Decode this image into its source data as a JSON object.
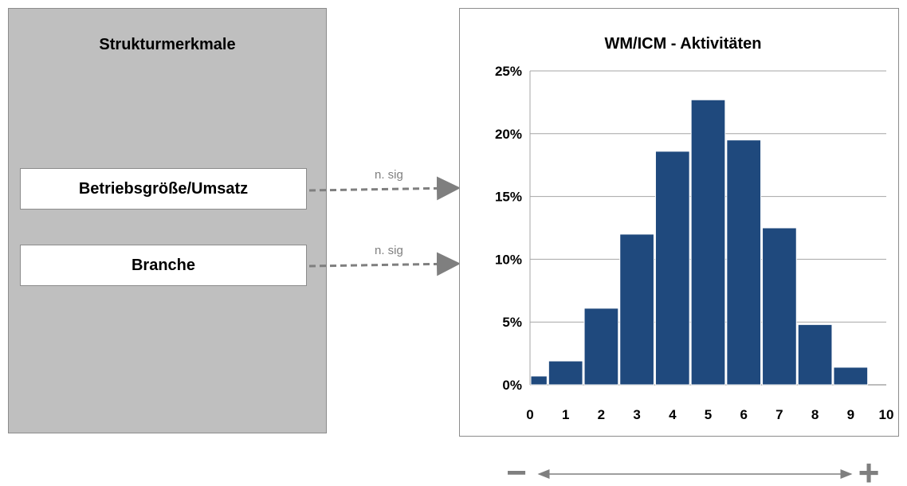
{
  "left_panel": {
    "title": "Strukturmerkmale",
    "factors": [
      {
        "label": "Betriebsgröße/Umsatz",
        "significance": "n. sig"
      },
      {
        "label": "Branche",
        "significance": "n. sig"
      }
    ]
  },
  "scale": {
    "minus_symbol": "−",
    "plus_symbol": "+"
  },
  "colors": {
    "bar": "#1f497d",
    "grid": "#a6a6a6",
    "arrow": "#7f7f7f",
    "panel": "#bfbfbf"
  },
  "chart_data": {
    "type": "bar",
    "title": "WM/ICM - Aktivitäten",
    "xlabel": "",
    "ylabel": "",
    "x_ticks": [
      "0",
      "1",
      "2",
      "3",
      "4",
      "5",
      "6",
      "7",
      "8",
      "9",
      "10"
    ],
    "bins": [
      [
        0,
        0.5
      ],
      [
        0.5,
        1.5
      ],
      [
        1.5,
        2.5
      ],
      [
        2.5,
        3.5
      ],
      [
        3.5,
        4.5
      ],
      [
        4.5,
        5.5
      ],
      [
        5.5,
        6.5
      ],
      [
        6.5,
        7.5
      ],
      [
        7.5,
        8.5
      ],
      [
        8.5,
        9.5
      ]
    ],
    "values": [
      0.7,
      1.9,
      6.1,
      12.0,
      18.6,
      22.7,
      19.5,
      12.5,
      4.8,
      1.4
    ],
    "y_ticks": [
      "0%",
      "5%",
      "10%",
      "15%",
      "20%",
      "25%"
    ],
    "xlim": [
      0,
      10
    ],
    "ylim": [
      0,
      25
    ],
    "grid": true,
    "legend": "none"
  }
}
